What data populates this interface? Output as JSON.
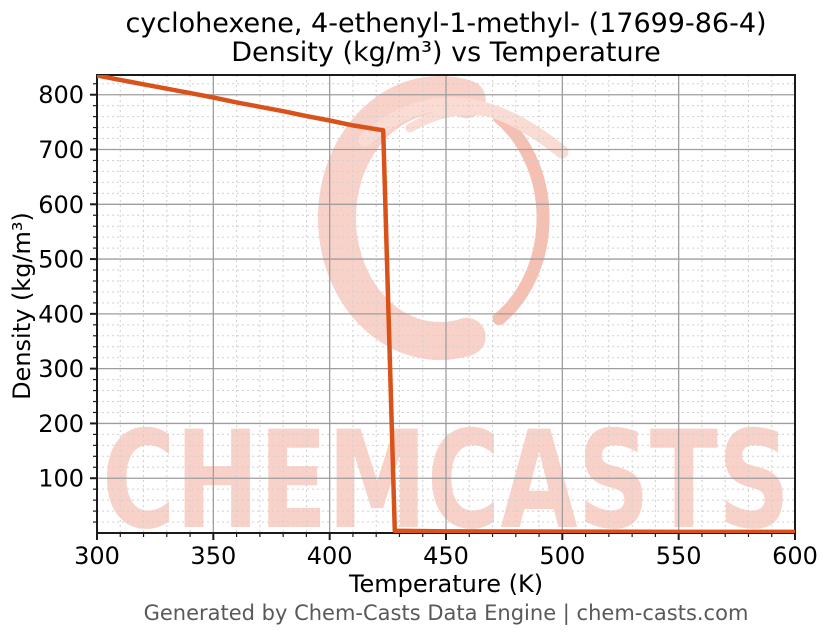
{
  "figure": {
    "title_line1": "cyclohexene, 4-ethenyl-1-methyl- (17699-86-4)",
    "title_line2": "Density (kg/m³) vs Temperature",
    "footer": "Generated by Chem-Casts Data Engine | chem-casts.com",
    "watermark_text": "CHEMCASTS"
  },
  "colors": {
    "line": "#d9521a",
    "grid_major": "#9e9e9e",
    "grid_minor": "#d0d0d0",
    "spine": "#1a1a1a",
    "tick_label": "#000000",
    "footer_text": "#595959",
    "watermark_pink": "#f8d2c8",
    "watermark_pink_soft": "#fadcd4",
    "watermark_pink_deep": "#f5c0b2"
  },
  "chart_data": {
    "type": "line",
    "title": "cyclohexene, 4-ethenyl-1-methyl- (17699-86-4) — Density (kg/m³) vs Temperature",
    "xlabel": "Temperature (K)",
    "ylabel": "Density (kg/m³)",
    "xlim": [
      300,
      600
    ],
    "ylim": [
      0,
      836
    ],
    "x_major_ticks": [
      300,
      350,
      400,
      450,
      500,
      550,
      600
    ],
    "y_major_ticks": [
      100,
      200,
      300,
      400,
      500,
      600,
      700,
      800
    ],
    "x_minor_step": 10,
    "y_minor_step": 20,
    "grid": true,
    "legend": "none",
    "series": [
      {
        "name": "density",
        "color": "#d9521a",
        "points": [
          [
            300,
            835
          ],
          [
            310,
            827
          ],
          [
            320,
            819
          ],
          [
            330,
            811
          ],
          [
            340,
            803
          ],
          [
            350,
            795
          ],
          [
            360,
            786
          ],
          [
            370,
            778
          ],
          [
            380,
            770
          ],
          [
            390,
            761
          ],
          [
            400,
            753
          ],
          [
            410,
            744
          ],
          [
            420,
            737
          ],
          [
            423,
            735
          ],
          [
            428,
            4
          ],
          [
            450,
            3
          ],
          [
            500,
            2.5
          ],
          [
            550,
            2
          ],
          [
            600,
            2
          ]
        ]
      }
    ],
    "annotations": {
      "phase_transition_K": 425,
      "liquid_density_at_300K": 835,
      "liquid_density_at_transition": 735,
      "vapor_density_after_transition": 3
    }
  }
}
